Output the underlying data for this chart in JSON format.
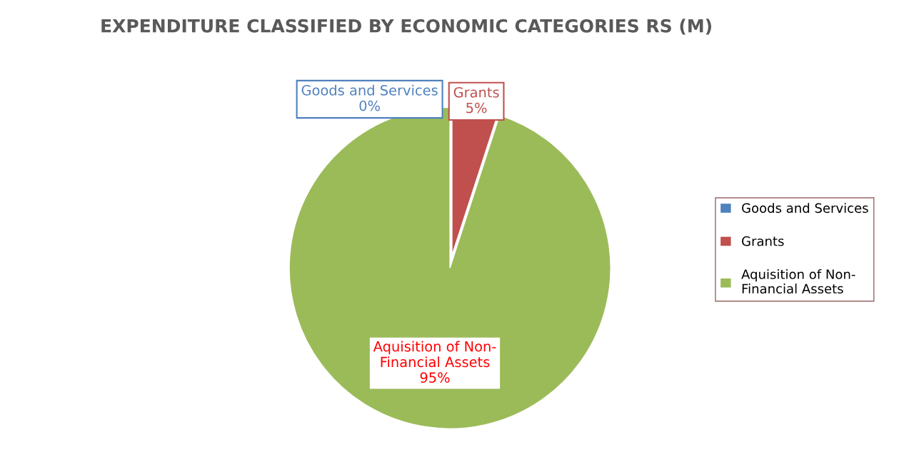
{
  "chart_data": {
    "type": "pie",
    "title": "EXPENDITURE CLASSIFIED BY ECONOMIC CATEGORIES RS (M)",
    "categories": [
      "Goods and Services",
      "Grants",
      "Aquisition of Non-Financial Assets"
    ],
    "values": [
      0,
      5,
      95
    ],
    "colors": [
      "#4f81bd",
      "#c0504d",
      "#9bbb59"
    ],
    "value_labels": [
      "0%",
      "5%",
      "95%"
    ],
    "legend": "right"
  }
}
